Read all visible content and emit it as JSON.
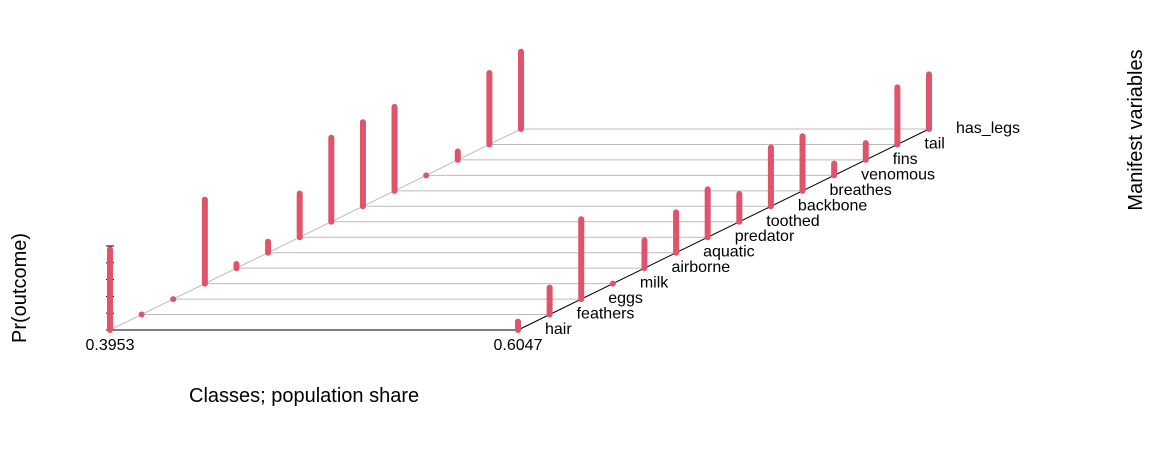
{
  "chart_data": {
    "type": "lca3d",
    "y_label": "Pr(outcome)",
    "x_label": "Classes; population share",
    "z_label": "Manifest variables",
    "classes": [
      0.3953,
      0.6047
    ],
    "variables": [
      "hair",
      "feathers",
      "eggs",
      "milk",
      "airborne",
      "aquatic",
      "predator",
      "toothed",
      "backbone",
      "breathes",
      "venomous",
      "fins",
      "tail",
      "has_legs"
    ],
    "color": "#df536b",
    "ylim": [
      0,
      1
    ],
    "yticks": [
      0,
      0.2,
      0.4,
      0.6,
      0.8,
      1
    ],
    "series": [
      {
        "values": [
          0.96,
          0,
          0,
          1.0,
          0.05,
          0.13,
          0.52,
          1.0,
          1.0,
          1.0,
          0,
          0.1,
          0.85,
          0.92
        ]
      },
      {
        "values": [
          0.1,
          0.32,
          0.95,
          0,
          0.33,
          0.48,
          0.57,
          0.33,
          0.7,
          0.65,
          0.14,
          0.2,
          0.68,
          0.65
        ]
      }
    ]
  }
}
